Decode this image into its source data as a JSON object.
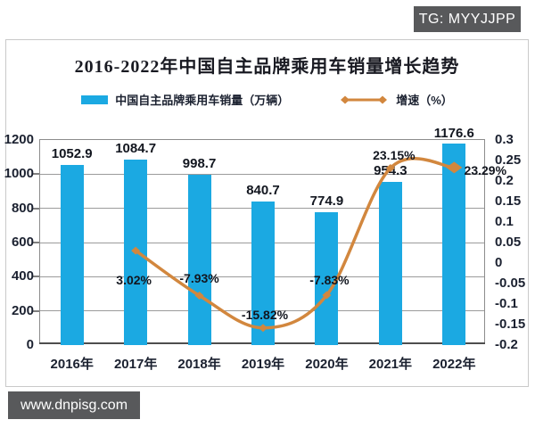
{
  "watermarks": {
    "tg_badge": "TG: MYYJJPP",
    "site_badge": "www.dnpisg.com"
  },
  "chart": {
    "title": "2016-2022年中国自主品牌乘用车销量增长趋势",
    "legend": {
      "bars_label": "中国自主品牌乘用车销量（万辆）",
      "line_label": "增速（%）"
    }
  },
  "colors": {
    "bar": "#1BA9E2",
    "line": "#D2873E",
    "text_dark": "#1B2130",
    "badge_bg": "#58595B",
    "grid": "#9B9B9B",
    "plot_border": "#8C8C8C",
    "axis_bottom": "#4E4E4E"
  },
  "chart_data": {
    "type": "bar",
    "subtype": "combo bar + smoothed line, dual y-axis",
    "title": "2016-2022年中国自主品牌乘用车销量增长趋势",
    "categories": [
      "2016年",
      "2017年",
      "2018年",
      "2019年",
      "2020年",
      "2021年",
      "2022年"
    ],
    "series": [
      {
        "name": "中国自主品牌乘用车销量（万辆）",
        "type": "bar",
        "axis": "left",
        "color": "#1BA9E2",
        "values": [
          1052.9,
          1084.7,
          998.7,
          840.7,
          774.9,
          954.3,
          1176.6
        ],
        "labels": [
          "1052.9",
          "1084.7",
          "998.7",
          "840.7",
          "774.9",
          "954.3",
          "1176.6"
        ]
      },
      {
        "name": "增速（%）",
        "type": "line",
        "axis": "right",
        "color": "#D2873E",
        "smooth": true,
        "end_arrow": true,
        "values_percent": [
          null,
          3.02,
          -7.93,
          -15.82,
          -7.83,
          23.15,
          23.29
        ],
        "labels": [
          null,
          "3.02%",
          "-7.93%",
          "-15.82%",
          "-7.83%",
          "23.15%",
          "23.29%"
        ],
        "label_offsets": [
          null,
          [
            -2,
            33
          ],
          [
            0,
            -19
          ],
          [
            2,
            -15
          ],
          [
            3,
            -17
          ],
          [
            4,
            -15
          ],
          [
            35,
            3
          ]
        ]
      }
    ],
    "left_axis": {
      "min": 0,
      "max": 1200,
      "step": 200,
      "ticks": [
        "1200",
        "1000",
        "800",
        "600",
        "400",
        "200",
        "0"
      ]
    },
    "right_axis": {
      "min": -0.2,
      "max": 0.3,
      "step": 0.05,
      "ticks": [
        "0.3",
        "0.25",
        "0.2",
        "0.15",
        "0.1",
        "0.05",
        "0",
        "-0.05",
        "-0.1",
        "-0.15",
        "-0.2"
      ]
    },
    "grid": "horizontal gridlines at left-axis steps",
    "legend_position": "top"
  }
}
